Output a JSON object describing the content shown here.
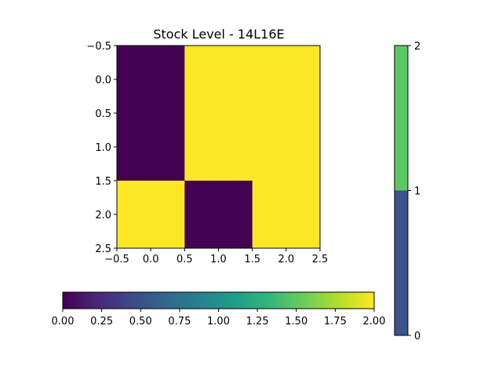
{
  "chart_data": [
    {
      "type": "heatmap",
      "title": "Stock Level - 14L16E",
      "rows": 3,
      "cols": 3,
      "values": [
        [
          0,
          2,
          2
        ],
        [
          0,
          2,
          2
        ],
        [
          2,
          0,
          2
        ]
      ],
      "xlim": [
        -0.5,
        2.5
      ],
      "ylim": [
        2.5,
        -0.5
      ],
      "x_ticks": [
        -0.5,
        0.0,
        0.5,
        1.0,
        1.5,
        2.0,
        2.5
      ],
      "x_tick_labels": [
        "−0.5",
        "0.0",
        "0.5",
        "1.0",
        "1.5",
        "2.0",
        "2.5"
      ],
      "y_ticks": [
        -0.5,
        0.0,
        0.5,
        1.0,
        1.5,
        2.0,
        2.5
      ],
      "y_tick_labels": [
        "−0.5",
        "0.0",
        "0.5",
        "1.0",
        "1.5",
        "2.0",
        "2.5"
      ],
      "colormap": "viridis",
      "value_colors": {
        "0": "#440154",
        "2": "#fde725"
      }
    },
    {
      "type": "colorbar",
      "orientation": "horizontal",
      "colormap": "viridis",
      "range": [
        0.0,
        2.0
      ],
      "ticks": [
        0.0,
        0.25,
        0.5,
        0.75,
        1.0,
        1.25,
        1.5,
        1.75,
        2.0
      ],
      "tick_labels": [
        "0.00",
        "0.25",
        "0.50",
        "0.75",
        "1.00",
        "1.25",
        "1.50",
        "1.75",
        "2.00"
      ],
      "stops": [
        "#440154",
        "#482878",
        "#3e4989",
        "#31688e",
        "#26828e",
        "#1f9e89",
        "#35b779",
        "#6ece58",
        "#b5de2b",
        "#fde725"
      ]
    },
    {
      "type": "colorbar",
      "orientation": "vertical",
      "range": [
        0,
        2
      ],
      "segments": [
        {
          "from": 0,
          "to": 1,
          "color": "#3b528b"
        },
        {
          "from": 1,
          "to": 2,
          "color": "#5ec962"
        }
      ],
      "ticks": [
        0,
        1,
        2
      ],
      "tick_labels": [
        "0",
        "1",
        "2"
      ]
    }
  ]
}
